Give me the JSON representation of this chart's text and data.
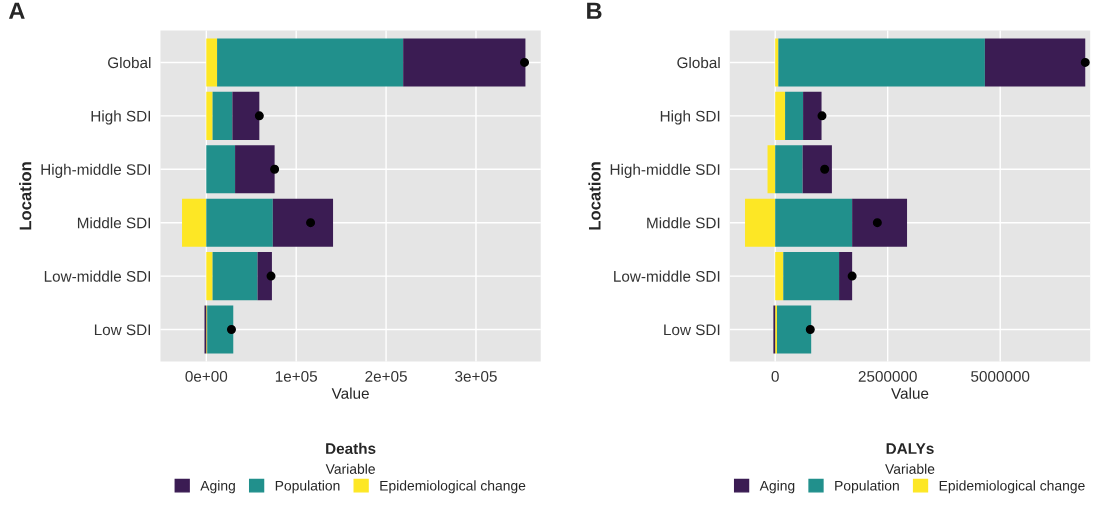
{
  "chart_data": [
    {
      "type": "bar",
      "orientation": "horizontal",
      "stacked": true,
      "title": "A",
      "subtitle": "Deaths",
      "xlabel": "Value",
      "ylabel": "Location",
      "legend_title": "Variable",
      "legend": "bottom",
      "grid": true,
      "categories": [
        "Global",
        "High SDI",
        "High-middle SDI",
        "Middle SDI",
        "Low-middle SDI",
        "Low SDI"
      ],
      "xlim": [
        -51000,
        372000
      ],
      "xticks": [
        {
          "value": 0,
          "label": "0e+00"
        },
        {
          "value": 100000,
          "label": "1e+05"
        },
        {
          "value": 200000,
          "label": "2e+05"
        },
        {
          "value": 300000,
          "label": "3e+05"
        }
      ],
      "series": [
        {
          "name": "Epidemiological change",
          "color": "#fde725",
          "values": [
            12000,
            7000,
            0,
            -27000,
            7000,
            1000
          ]
        },
        {
          "name": "Population",
          "color": "#21908c",
          "values": [
            207000,
            22000,
            32000,
            74000,
            50000,
            29000
          ]
        },
        {
          "name": "Aging",
          "color": "#3b1c53",
          "values": [
            136000,
            30000,
            44000,
            67000,
            16000,
            -2000
          ]
        },
        {
          "type": "scatter",
          "color": "#000000",
          "values": [
            354000,
            59000,
            76000,
            116000,
            72000,
            28000
          ]
        }
      ]
    },
    {
      "type": "bar",
      "orientation": "horizontal",
      "stacked": true,
      "title": "B",
      "subtitle": "DALYs",
      "xlabel": "Value",
      "ylabel": "Location",
      "legend_title": "Variable",
      "legend": "bottom",
      "grid": true,
      "categories": [
        "Global",
        "High SDI",
        "High-middle SDI",
        "Middle SDI",
        "Low-middle SDI",
        "Low SDI"
      ],
      "xlim": [
        -1010000,
        7000000
      ],
      "xticks": [
        0,
        2500000,
        5000000
      ],
      "series": [
        {
          "name": "Epidemiological change",
          "color": "#fde725",
          "values": [
            70000,
            220000,
            -170000,
            -670000,
            180000,
            40000
          ]
        },
        {
          "name": "Population",
          "color": "#21908c",
          "values": [
            4590000,
            400000,
            610000,
            1710000,
            1240000,
            760000
          ]
        },
        {
          "name": "Aging",
          "color": "#3b1c53",
          "values": [
            2230000,
            410000,
            650000,
            1220000,
            290000,
            -40000
          ]
        },
        {
          "type": "scatter",
          "color": "#000000",
          "values": [
            6890000,
            1040000,
            1100000,
            2270000,
            1710000,
            780000
          ]
        }
      ]
    }
  ]
}
